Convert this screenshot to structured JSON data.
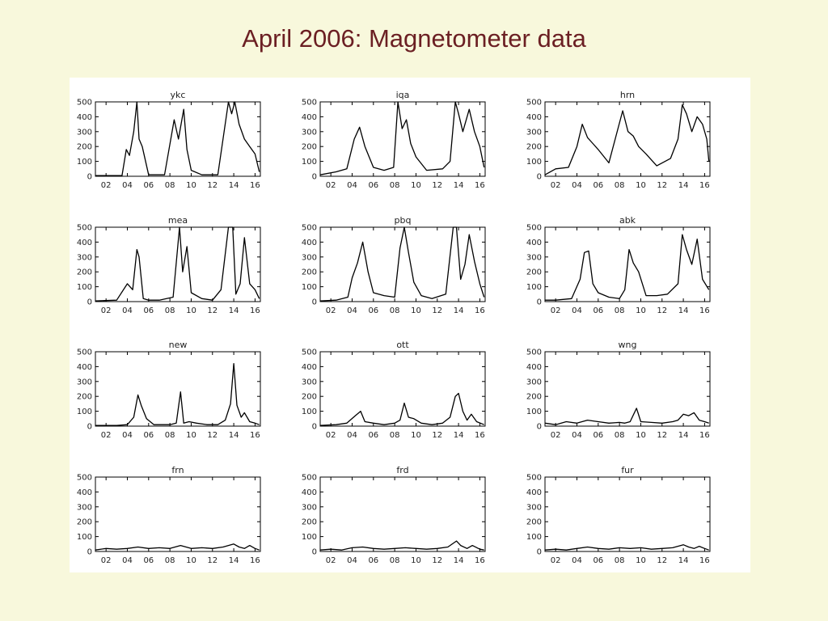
{
  "title": "April 2006: Magnetometer data",
  "chart_data": [
    {
      "type": "line",
      "title": "ykc",
      "x_tick_labels": [
        "02",
        "04",
        "06",
        "08",
        "10",
        "12",
        "14",
        "16"
      ],
      "y_tick_labels": [
        "0",
        "100",
        "200",
        "300",
        "400",
        "500"
      ],
      "xlim": [
        1,
        16.5
      ],
      "ylim": [
        0,
        500
      ],
      "series": [
        {
          "x": [
            1,
            3.5,
            3.9,
            4.2,
            4.6,
            4.9,
            5.1,
            5.4,
            6,
            7.5,
            8.4,
            8.8,
            9.3,
            9.6,
            10,
            11,
            12.5,
            13.5,
            13.8,
            14.1,
            14.5,
            15,
            15.5,
            16,
            16.4
          ],
          "y": [
            5,
            5,
            180,
            140,
            300,
            500,
            250,
            200,
            10,
            10,
            380,
            250,
            450,
            180,
            40,
            10,
            10,
            500,
            420,
            500,
            350,
            250,
            200,
            150,
            30
          ]
        }
      ]
    },
    {
      "type": "line",
      "title": "iqa",
      "x_tick_labels": [
        "02",
        "04",
        "06",
        "08",
        "10",
        "12",
        "14",
        "16"
      ],
      "y_tick_labels": [
        "0",
        "100",
        "200",
        "300",
        "400",
        "500"
      ],
      "xlim": [
        1,
        16.5
      ],
      "ylim": [
        0,
        500
      ],
      "series": [
        {
          "x": [
            1,
            2.5,
            3.5,
            4.2,
            4.7,
            5.2,
            6,
            7,
            7.9,
            8.3,
            8.7,
            9.1,
            9.5,
            10,
            11,
            12.5,
            13.2,
            13.7,
            14,
            14.4,
            15,
            15.5,
            16,
            16.4
          ],
          "y": [
            10,
            30,
            50,
            250,
            330,
            200,
            60,
            40,
            60,
            500,
            320,
            380,
            220,
            130,
            40,
            50,
            100,
            500,
            420,
            300,
            450,
            300,
            200,
            60
          ]
        }
      ]
    },
    {
      "type": "line",
      "title": "hrn",
      "x_tick_labels": [
        "02",
        "04",
        "06",
        "08",
        "10",
        "12",
        "14",
        "16"
      ],
      "y_tick_labels": [
        "0",
        "100",
        "200",
        "300",
        "400",
        "500"
      ],
      "xlim": [
        1,
        16.5
      ],
      "ylim": [
        0,
        500
      ],
      "series": [
        {
          "x": [
            1,
            2,
            3.2,
            4,
            4.5,
            5,
            5.5,
            6,
            7,
            8.3,
            8.8,
            9.3,
            9.8,
            10.5,
            11.5,
            12.8,
            13.5,
            13.9,
            14.3,
            14.8,
            15.3,
            15.8,
            16.2,
            16.4
          ],
          "y": [
            10,
            50,
            60,
            200,
            350,
            260,
            220,
            180,
            90,
            440,
            300,
            270,
            200,
            150,
            70,
            120,
            250,
            480,
            420,
            300,
            400,
            350,
            250,
            100
          ]
        }
      ]
    },
    {
      "type": "line",
      "title": "mea",
      "x_tick_labels": [
        "02",
        "04",
        "06",
        "08",
        "10",
        "12",
        "14",
        "16"
      ],
      "y_tick_labels": [
        "0",
        "100",
        "200",
        "300",
        "400",
        "500"
      ],
      "xlim": [
        1,
        16.5
      ],
      "ylim": [
        0,
        500
      ],
      "series": [
        {
          "x": [
            1,
            3,
            4,
            4.5,
            4.9,
            5.1,
            5.5,
            6,
            7,
            8.3,
            8.9,
            9.2,
            9.6,
            10,
            11,
            12,
            12.8,
            13.5,
            13.9,
            14.2,
            14.6,
            15,
            15.5,
            16,
            16.4
          ],
          "y": [
            5,
            10,
            120,
            80,
            350,
            300,
            20,
            10,
            10,
            30,
            500,
            200,
            370,
            60,
            20,
            10,
            80,
            500,
            500,
            50,
            120,
            430,
            120,
            80,
            20
          ]
        }
      ]
    },
    {
      "type": "line",
      "title": "pbq",
      "x_tick_labels": [
        "02",
        "04",
        "06",
        "08",
        "10",
        "12",
        "14",
        "16"
      ],
      "y_tick_labels": [
        "0",
        "100",
        "200",
        "300",
        "400",
        "500"
      ],
      "xlim": [
        1,
        16.5
      ],
      "ylim": [
        0,
        500
      ],
      "series": [
        {
          "x": [
            1,
            2.5,
            3.6,
            4,
            4.5,
            5,
            5.5,
            6,
            7,
            8,
            8.5,
            8.9,
            9.3,
            9.8,
            10.5,
            11.5,
            12.8,
            13.5,
            13.8,
            14.2,
            14.6,
            15,
            15.5,
            16,
            16.4
          ],
          "y": [
            5,
            10,
            30,
            160,
            260,
            400,
            200,
            60,
            40,
            30,
            360,
            500,
            330,
            130,
            40,
            20,
            50,
            500,
            500,
            150,
            250,
            450,
            270,
            120,
            30
          ]
        }
      ]
    },
    {
      "type": "line",
      "title": "abk",
      "x_tick_labels": [
        "02",
        "04",
        "06",
        "08",
        "10",
        "12",
        "14",
        "16"
      ],
      "y_tick_labels": [
        "0",
        "100",
        "200",
        "300",
        "400",
        "500"
      ],
      "xlim": [
        1,
        16.5
      ],
      "ylim": [
        0,
        500
      ],
      "series": [
        {
          "x": [
            1,
            2,
            3.5,
            4.3,
            4.7,
            5.1,
            5.5,
            6,
            7,
            8,
            8.5,
            8.9,
            9.3,
            9.8,
            10.5,
            11.5,
            12.5,
            13.5,
            13.9,
            14.3,
            14.8,
            15.3,
            15.8,
            16.4
          ],
          "y": [
            10,
            10,
            20,
            150,
            330,
            340,
            120,
            60,
            30,
            20,
            80,
            350,
            260,
            200,
            40,
            40,
            50,
            120,
            450,
            350,
            250,
            420,
            150,
            80
          ]
        }
      ]
    },
    {
      "type": "line",
      "title": "new",
      "x_tick_labels": [
        "02",
        "04",
        "06",
        "08",
        "10",
        "12",
        "14",
        "16"
      ],
      "y_tick_labels": [
        "0",
        "100",
        "200",
        "300",
        "400",
        "500"
      ],
      "xlim": [
        1,
        16.5
      ],
      "ylim": [
        0,
        500
      ],
      "series": [
        {
          "x": [
            1,
            3,
            4,
            4.6,
            5,
            5.3,
            5.8,
            6.5,
            8,
            8.6,
            9,
            9.3,
            9.8,
            10.5,
            11.5,
            12.5,
            13.2,
            13.7,
            14,
            14.3,
            14.7,
            15,
            15.5,
            16,
            16.4
          ],
          "y": [
            5,
            5,
            10,
            60,
            210,
            140,
            50,
            10,
            10,
            20,
            230,
            20,
            30,
            20,
            10,
            10,
            40,
            150,
            420,
            140,
            60,
            90,
            30,
            20,
            10
          ]
        }
      ]
    },
    {
      "type": "line",
      "title": "ott",
      "x_tick_labels": [
        "02",
        "04",
        "06",
        "08",
        "10",
        "12",
        "14",
        "16"
      ],
      "y_tick_labels": [
        "0",
        "100",
        "200",
        "300",
        "400",
        "500"
      ],
      "xlim": [
        1,
        16.5
      ],
      "ylim": [
        0,
        500
      ],
      "series": [
        {
          "x": [
            1,
            2.5,
            3.5,
            4.3,
            4.8,
            5.2,
            6,
            7,
            8,
            8.5,
            8.9,
            9.3,
            9.8,
            10.5,
            11.5,
            12.5,
            13.2,
            13.7,
            14,
            14.4,
            14.8,
            15.2,
            15.7,
            16.4
          ],
          "y": [
            5,
            10,
            20,
            70,
            100,
            30,
            20,
            10,
            20,
            40,
            155,
            60,
            50,
            20,
            10,
            20,
            60,
            200,
            220,
            100,
            40,
            80,
            30,
            10
          ]
        }
      ]
    },
    {
      "type": "line",
      "title": "wng",
      "x_tick_labels": [
        "02",
        "04",
        "06",
        "08",
        "10",
        "12",
        "14",
        "16"
      ],
      "y_tick_labels": [
        "0",
        "100",
        "200",
        "300",
        "400",
        "500"
      ],
      "xlim": [
        1,
        16.5
      ],
      "ylim": [
        0,
        500
      ],
      "series": [
        {
          "x": [
            1,
            2,
            3,
            4,
            5,
            6,
            7,
            8,
            8.5,
            9,
            9.6,
            10,
            11,
            12,
            13,
            13.5,
            14,
            14.5,
            15,
            15.5,
            16,
            16.4
          ],
          "y": [
            20,
            10,
            30,
            20,
            40,
            30,
            20,
            25,
            20,
            30,
            120,
            30,
            25,
            20,
            30,
            40,
            80,
            70,
            90,
            40,
            30,
            20
          ]
        }
      ]
    },
    {
      "type": "line",
      "title": "frn",
      "x_tick_labels": [
        "02",
        "04",
        "06",
        "08",
        "10",
        "12",
        "14",
        "16"
      ],
      "y_tick_labels": [
        "0",
        "100",
        "200",
        "300",
        "400",
        "500"
      ],
      "xlim": [
        1,
        16.5
      ],
      "ylim": [
        0,
        500
      ],
      "series": [
        {
          "x": [
            1,
            2,
            3,
            4,
            5,
            6,
            7,
            8,
            9,
            10,
            11,
            12,
            13,
            14,
            14.5,
            15,
            15.5,
            16,
            16.4
          ],
          "y": [
            10,
            20,
            15,
            20,
            30,
            20,
            25,
            20,
            40,
            20,
            25,
            20,
            30,
            50,
            30,
            20,
            40,
            20,
            10
          ]
        }
      ]
    },
    {
      "type": "line",
      "title": "frd",
      "x_tick_labels": [
        "02",
        "04",
        "06",
        "08",
        "10",
        "12",
        "14",
        "16"
      ],
      "y_tick_labels": [
        "0",
        "100",
        "200",
        "300",
        "400",
        "500"
      ],
      "xlim": [
        1,
        16.5
      ],
      "ylim": [
        0,
        500
      ],
      "series": [
        {
          "x": [
            1,
            2,
            3,
            4,
            5,
            6,
            7,
            8,
            9,
            10,
            11,
            12,
            13,
            13.8,
            14.2,
            14.8,
            15.3,
            16,
            16.4
          ],
          "y": [
            10,
            15,
            10,
            25,
            30,
            20,
            15,
            20,
            25,
            20,
            15,
            20,
            30,
            70,
            40,
            20,
            40,
            15,
            10
          ]
        }
      ]
    },
    {
      "type": "line",
      "title": "fur",
      "x_tick_labels": [
        "02",
        "04",
        "06",
        "08",
        "10",
        "12",
        "14",
        "16"
      ],
      "y_tick_labels": [
        "0",
        "100",
        "200",
        "300",
        "400",
        "500"
      ],
      "xlim": [
        1,
        16.5
      ],
      "ylim": [
        0,
        500
      ],
      "series": [
        {
          "x": [
            1,
            2,
            3,
            4,
            5,
            6,
            7,
            8,
            9,
            10,
            11,
            12,
            13,
            14,
            14.5,
            15,
            15.5,
            16,
            16.4
          ],
          "y": [
            10,
            15,
            10,
            20,
            30,
            20,
            15,
            25,
            20,
            25,
            15,
            20,
            25,
            45,
            30,
            20,
            35,
            20,
            10
          ]
        }
      ]
    }
  ]
}
